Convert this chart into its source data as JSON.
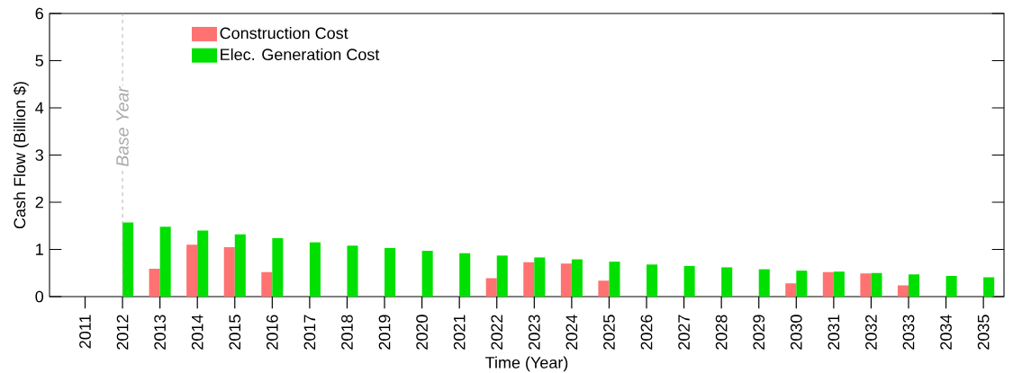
{
  "chart_data": {
    "type": "bar",
    "xlabel": "Time (Year)",
    "ylabel": "Cash Flow (Billion $)",
    "categories": [
      "2011",
      "2012",
      "2013",
      "2014",
      "2015",
      "2016",
      "2017",
      "2018",
      "2019",
      "2020",
      "2021",
      "2022",
      "2023",
      "2024",
      "2025",
      "2026",
      "2027",
      "2028",
      "2029",
      "2030",
      "2031",
      "2032",
      "2033",
      "2034",
      "2035"
    ],
    "series": [
      {
        "name": "Construction Cost",
        "color": "#ff7272",
        "values": [
          null,
          null,
          0.59,
          1.1,
          1.05,
          0.52,
          null,
          null,
          null,
          null,
          null,
          0.39,
          0.73,
          0.7,
          0.34,
          null,
          null,
          null,
          null,
          0.28,
          0.52,
          0.49,
          0.24,
          null,
          null
        ]
      },
      {
        "name": "Elec. Generation Cost",
        "color": "#00e000",
        "values": [
          null,
          1.57,
          1.48,
          1.4,
          1.32,
          1.24,
          1.15,
          1.08,
          1.03,
          0.97,
          0.92,
          0.87,
          0.83,
          0.79,
          0.74,
          0.68,
          0.65,
          0.62,
          0.58,
          0.55,
          0.53,
          0.5,
          0.47,
          0.44,
          0.41
        ]
      }
    ],
    "ylim": [
      0,
      6
    ],
    "yticks": [
      0,
      1,
      2,
      3,
      4,
      5,
      6
    ],
    "ref_lines": [
      {
        "axis": "x",
        "value": "2012",
        "label": "Base Year",
        "color": "#aaaaaa",
        "line_style": "dashed"
      }
    ],
    "legend": "top left",
    "grid": false
  }
}
